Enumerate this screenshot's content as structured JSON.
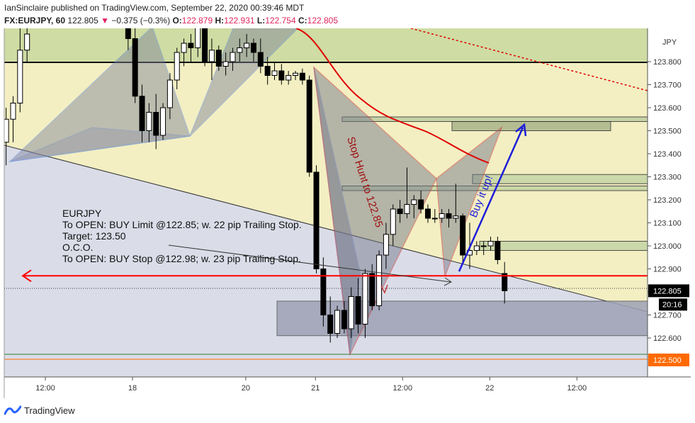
{
  "header": {
    "publisher_line": "IanSinclaire published on TradingView.com, September 22, 2020 00:39:46 MDT",
    "symbol": "FX:EURJPY, 60",
    "last": "122.805",
    "change": "−0.375 (−0.3%)",
    "ohlc": {
      "o": "122.879",
      "h": "122.931",
      "l": "122.754",
      "c": "122.805"
    }
  },
  "footer": {
    "brand": "TradingView"
  },
  "colors": {
    "background": "#ffffff",
    "band_upper": "#f3efc3",
    "band_lower": "#dadde8",
    "band_green": "#cbd9a0",
    "candle_up": "#ffffff",
    "candle_down": "#000000",
    "harmonic_blue": "#5b7fd0",
    "harmonic_red": "#c23b3b",
    "ma_line": "#e00000",
    "horizontal_red": "#ff0000",
    "arrow_blue": "#1d1dd9"
  },
  "chart_data": {
    "type": "candlestick",
    "symbol": "EURJPY",
    "timeframe": "60",
    "currency_label": "JPY",
    "y_ticks": [
      "123.800",
      "123.700",
      "123.600",
      "123.500",
      "123.400",
      "123.300",
      "123.200",
      "123.100",
      "123.000",
      "122.900",
      "122.800",
      "122.700",
      "122.600"
    ],
    "y_range": [
      122.35,
      124.0
    ],
    "x_ticks": [
      "12:00",
      "18",
      "20",
      "21",
      "12:00",
      "22",
      "12:00"
    ],
    "x_tick_bars": [
      0,
      10,
      23,
      31,
      41,
      51,
      61
    ],
    "bars_visible": 72,
    "price_labels": {
      "last": "122.805",
      "countdown": "20:16",
      "red_line": "122.500"
    },
    "levels": {
      "horizontal_red_arrow": 122.87,
      "dotted_last": 122.805,
      "orange_line": 122.5,
      "green_line": 122.52,
      "black_line": 123.78
    },
    "candles": [
      {
        "i": -4.5,
        "o": 123.45,
        "h": 123.6,
        "l": 123.35,
        "c": 123.55
      },
      {
        "i": -3.7,
        "o": 123.55,
        "h": 123.65,
        "l": 123.45,
        "c": 123.62
      },
      {
        "i": -2.9,
        "o": 123.62,
        "h": 124.0,
        "l": 123.58,
        "c": 123.85
      },
      {
        "i": -2.1,
        "o": 123.85,
        "h": 124.0,
        "l": 123.8,
        "c": 123.92
      },
      {
        "i": 9.5,
        "o": 123.96,
        "h": 124.0,
        "l": 123.85,
        "c": 123.9
      },
      {
        "i": 10.3,
        "o": 123.9,
        "h": 123.98,
        "l": 123.62,
        "c": 123.65
      },
      {
        "i": 11.1,
        "o": 123.65,
        "h": 123.7,
        "l": 123.45,
        "c": 123.5
      },
      {
        "i": 11.9,
        "o": 123.5,
        "h": 123.62,
        "l": 123.45,
        "c": 123.58
      },
      {
        "i": 12.7,
        "o": 123.58,
        "h": 123.66,
        "l": 123.42,
        "c": 123.48
      },
      {
        "i": 13.5,
        "o": 123.48,
        "h": 123.62,
        "l": 123.46,
        "c": 123.6
      },
      {
        "i": 14.3,
        "o": 123.6,
        "h": 123.75,
        "l": 123.55,
        "c": 123.72
      },
      {
        "i": 15.1,
        "o": 123.72,
        "h": 123.86,
        "l": 123.68,
        "c": 123.84
      },
      {
        "i": 15.9,
        "o": 123.84,
        "h": 123.9,
        "l": 123.78,
        "c": 123.88
      },
      {
        "i": 16.7,
        "o": 123.88,
        "h": 123.92,
        "l": 123.8,
        "c": 123.86
      },
      {
        "i": 17.5,
        "o": 123.86,
        "h": 124.0,
        "l": 123.82,
        "c": 123.95
      },
      {
        "i": 18.3,
        "o": 123.95,
        "h": 124.0,
        "l": 123.78,
        "c": 123.8
      },
      {
        "i": 19.1,
        "o": 123.8,
        "h": 123.9,
        "l": 123.72,
        "c": 123.85
      },
      {
        "i": 19.9,
        "o": 123.85,
        "h": 123.87,
        "l": 123.76,
        "c": 123.78
      },
      {
        "i": 20.7,
        "o": 123.78,
        "h": 123.84,
        "l": 123.74,
        "c": 123.8
      },
      {
        "i": 21.5,
        "o": 123.8,
        "h": 123.86,
        "l": 123.76,
        "c": 123.84
      },
      {
        "i": 22.3,
        "o": 123.84,
        "h": 123.9,
        "l": 123.8,
        "c": 123.86
      },
      {
        "i": 23.1,
        "o": 123.86,
        "h": 123.92,
        "l": 123.82,
        "c": 123.88
      },
      {
        "i": 23.9,
        "o": 123.88,
        "h": 123.9,
        "l": 123.8,
        "c": 123.84
      },
      {
        "i": 24.7,
        "o": 123.84,
        "h": 123.9,
        "l": 123.75,
        "c": 123.78
      },
      {
        "i": 25.5,
        "o": 123.78,
        "h": 123.82,
        "l": 123.7,
        "c": 123.74
      },
      {
        "i": 26.3,
        "o": 123.74,
        "h": 123.8,
        "l": 123.72,
        "c": 123.76
      },
      {
        "i": 27.1,
        "o": 123.76,
        "h": 123.79,
        "l": 123.7,
        "c": 123.72
      },
      {
        "i": 27.9,
        "o": 123.72,
        "h": 123.76,
        "l": 123.7,
        "c": 123.74
      },
      {
        "i": 28.7,
        "o": 123.74,
        "h": 123.76,
        "l": 123.72,
        "c": 123.75
      },
      {
        "i": 29.5,
        "o": 123.75,
        "h": 123.77,
        "l": 123.7,
        "c": 123.72
      },
      {
        "i": 30.3,
        "o": 123.72,
        "h": 123.74,
        "l": 123.3,
        "c": 123.32
      },
      {
        "i": 31.1,
        "o": 123.32,
        "h": 123.35,
        "l": 122.88,
        "c": 122.9
      },
      {
        "i": 31.9,
        "o": 122.9,
        "h": 122.95,
        "l": 122.65,
        "c": 122.7
      },
      {
        "i": 32.7,
        "o": 122.7,
        "h": 122.78,
        "l": 122.58,
        "c": 122.62
      },
      {
        "i": 33.5,
        "o": 122.62,
        "h": 122.74,
        "l": 122.6,
        "c": 122.72
      },
      {
        "i": 34.3,
        "o": 122.72,
        "h": 122.76,
        "l": 122.62,
        "c": 122.64
      },
      {
        "i": 35.1,
        "o": 122.64,
        "h": 122.82,
        "l": 122.6,
        "c": 122.78
      },
      {
        "i": 35.9,
        "o": 122.78,
        "h": 122.86,
        "l": 122.62,
        "c": 122.66
      },
      {
        "i": 36.7,
        "o": 122.66,
        "h": 122.9,
        "l": 122.6,
        "c": 122.88
      },
      {
        "i": 37.5,
        "o": 122.88,
        "h": 122.92,
        "l": 122.72,
        "c": 122.74
      },
      {
        "i": 38.3,
        "o": 122.74,
        "h": 122.98,
        "l": 122.72,
        "c": 122.96
      },
      {
        "i": 39.1,
        "o": 122.96,
        "h": 123.1,
        "l": 122.9,
        "c": 123.05
      },
      {
        "i": 39.9,
        "o": 123.05,
        "h": 123.18,
        "l": 123.0,
        "c": 123.16
      },
      {
        "i": 40.7,
        "o": 123.16,
        "h": 123.2,
        "l": 123.1,
        "c": 123.14
      },
      {
        "i": 41.5,
        "o": 123.14,
        "h": 123.34,
        "l": 123.12,
        "c": 123.18
      },
      {
        "i": 42.3,
        "o": 123.18,
        "h": 123.22,
        "l": 123.12,
        "c": 123.2
      },
      {
        "i": 43.1,
        "o": 123.2,
        "h": 123.24,
        "l": 123.14,
        "c": 123.16
      },
      {
        "i": 43.9,
        "o": 123.16,
        "h": 123.18,
        "l": 123.1,
        "c": 123.12
      },
      {
        "i": 44.7,
        "o": 123.12,
        "h": 123.16,
        "l": 123.1,
        "c": 123.12
      },
      {
        "i": 45.5,
        "o": 123.12,
        "h": 123.16,
        "l": 123.1,
        "c": 123.14
      },
      {
        "i": 46.3,
        "o": 123.14,
        "h": 123.16,
        "l": 123.08,
        "c": 123.12
      },
      {
        "i": 47.1,
        "o": 123.12,
        "h": 123.27,
        "l": 123.1,
        "c": 123.13
      },
      {
        "i": 47.9,
        "o": 123.13,
        "h": 123.14,
        "l": 122.92,
        "c": 122.96
      },
      {
        "i": 48.7,
        "o": 122.96,
        "h": 123.1,
        "l": 122.9,
        "c": 122.98
      },
      {
        "i": 49.5,
        "o": 122.98,
        "h": 123.02,
        "l": 122.96,
        "c": 123.0
      },
      {
        "i": 50.3,
        "o": 123.0,
        "h": 123.02,
        "l": 122.96,
        "c": 123.0
      },
      {
        "i": 51.1,
        "o": 123.0,
        "h": 123.04,
        "l": 122.98,
        "c": 123.02
      },
      {
        "i": 51.9,
        "o": 123.02,
        "h": 123.04,
        "l": 122.92,
        "c": 122.94
      },
      {
        "i": 52.7,
        "o": 122.88,
        "h": 122.93,
        "l": 122.75,
        "c": 122.805
      }
    ],
    "annotations": {
      "pair": "EURJPY",
      "open1": "To OPEN: BUY Limit @122.85; w. 22 pip Trailing Stop.",
      "target": "Target: 123.50",
      "oco": "O.C.O.",
      "open2": "To OPEN: BUY Stop @122.98; w. 23 pip Trailing Stop.",
      "stop_hunt": "Stop Hunt to 122.85",
      "buy_it_up": "Buy it up!"
    }
  }
}
